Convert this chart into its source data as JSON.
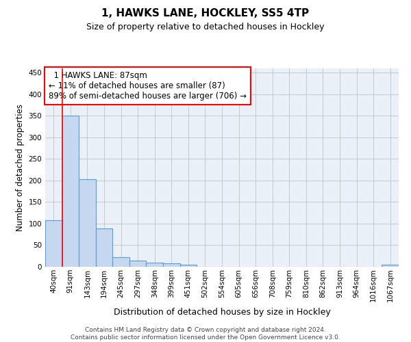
{
  "title": "1, HAWKS LANE, HOCKLEY, SS5 4TP",
  "subtitle": "Size of property relative to detached houses in Hockley",
  "xlabel": "Distribution of detached houses by size in Hockley",
  "ylabel": "Number of detached properties",
  "footer_line1": "Contains HM Land Registry data © Crown copyright and database right 2024.",
  "footer_line2": "Contains public sector information licensed under the Open Government Licence v3.0.",
  "bar_labels": [
    "40sqm",
    "91sqm",
    "143sqm",
    "194sqm",
    "245sqm",
    "297sqm",
    "348sqm",
    "399sqm",
    "451sqm",
    "502sqm",
    "554sqm",
    "605sqm",
    "656sqm",
    "708sqm",
    "759sqm",
    "810sqm",
    "862sqm",
    "913sqm",
    "964sqm",
    "1016sqm",
    "1067sqm"
  ],
  "bar_values": [
    108,
    350,
    203,
    89,
    23,
    15,
    9,
    8,
    5,
    0,
    0,
    0,
    0,
    0,
    0,
    0,
    0,
    0,
    0,
    0,
    5
  ],
  "bar_color": "#c5d8f0",
  "bar_edgecolor": "#5b9bd5",
  "bar_linewidth": 0.8,
  "grid_color": "#c8c8c8",
  "bg_color": "#eaf0f8",
  "ylim": [
    0,
    460
  ],
  "yticks": [
    0,
    50,
    100,
    150,
    200,
    250,
    300,
    350,
    400,
    450
  ],
  "annotation_text": "  1 HAWKS LANE: 87sqm\n← 11% of detached houses are smaller (87)\n89% of semi-detached houses are larger (706) →",
  "annotation_box_color": "white",
  "annotation_box_edgecolor": "red",
  "vline_color": "red",
  "vline_linewidth": 1.2,
  "title_fontsize": 11,
  "subtitle_fontsize": 9,
  "ylabel_fontsize": 8.5,
  "xlabel_fontsize": 9,
  "tick_fontsize": 7.5,
  "footer_fontsize": 6.5
}
